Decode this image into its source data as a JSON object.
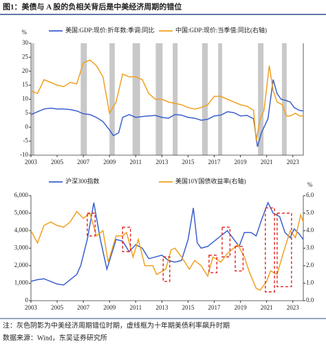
{
  "header": {
    "title": "图1：美债与 A 股的负相关背后是中美经济周期的错位"
  },
  "chart_data": [
    {
      "type": "line",
      "ylabel": "%",
      "xlim": [
        2003,
        2023.8
      ],
      "xticks": [
        2003,
        2005,
        2007,
        2009,
        2011,
        2013,
        2015,
        2017,
        2019,
        2021,
        2023
      ],
      "ylim": [
        -10,
        30
      ],
      "yticks": [
        -10,
        -5,
        0,
        5,
        10,
        15,
        20,
        25,
        30
      ],
      "y2lim": [
        -10,
        30
      ],
      "shaded_periods": [
        [
          2003.05,
          2003.26
        ],
        [
          2006.8,
          2007.27
        ],
        [
          2009.0,
          2009.4
        ],
        [
          2010.76,
          2011.33
        ],
        [
          2012.53,
          2013.05
        ],
        [
          2013.83,
          2014.2
        ],
        [
          2016.07,
          2016.5
        ],
        [
          2017.3,
          2017.6
        ],
        [
          2020.34,
          2020.76
        ],
        [
          2022.17,
          2022.53
        ]
      ],
      "series": [
        {
          "name": "美国:GDP:现价:折年数:季调:同比",
          "color": "#3a5fcd",
          "x": [
            2003,
            2003.5,
            2004,
            2004.5,
            2005,
            2005.5,
            2006,
            2006.5,
            2007,
            2007.5,
            2008,
            2008.5,
            2009,
            2009.3,
            2009.7,
            2010,
            2010.5,
            2011,
            2011.5,
            2012,
            2012.5,
            2013,
            2013.5,
            2014,
            2014.5,
            2015,
            2015.5,
            2016,
            2016.5,
            2017,
            2017.5,
            2018,
            2018.5,
            2019,
            2019.5,
            2020,
            2020.3,
            2020.6,
            2020.8,
            2021.1,
            2021.3,
            2021.5,
            2021.8,
            2022.1,
            2022.5,
            2022.8,
            2023.1,
            2023.5,
            2023.8
          ],
          "values": [
            4.5,
            5.5,
            6.5,
            6.8,
            6.5,
            6.5,
            6.3,
            5.8,
            4.8,
            4.5,
            3.5,
            2,
            -1,
            -3,
            -2,
            3.5,
            4.5,
            3.5,
            3.8,
            4,
            4.2,
            3.5,
            3.2,
            4.5,
            4.3,
            3.5,
            3.2,
            2.5,
            2.8,
            4,
            4.3,
            5.5,
            5.2,
            4,
            4.2,
            3,
            -7,
            -2,
            0,
            3,
            10,
            17,
            12,
            10,
            9.5,
            9,
            7,
            6,
            5.8
          ]
        },
        {
          "name": "中国:GDP:现价:当季值:同比(右轴)",
          "color": "#f0a020",
          "axis": "y2",
          "x": [
            2003,
            2003.5,
            2004,
            2004.5,
            2005,
            2005.5,
            2006,
            2006.5,
            2007,
            2007.5,
            2008,
            2008.5,
            2009,
            2009.5,
            2010,
            2010.5,
            2011,
            2011.5,
            2012,
            2012.5,
            2013,
            2013.5,
            2014,
            2014.5,
            2015,
            2015.5,
            2016,
            2016.5,
            2017,
            2017.5,
            2018,
            2018.5,
            2019,
            2019.5,
            2020,
            2020.2,
            2020.5,
            2020.8,
            2021.2,
            2021.5,
            2021.8,
            2022.2,
            2022.5,
            2022.8,
            2023.2,
            2023.5,
            2023.8
          ],
          "values": [
            13,
            12,
            17,
            16,
            15,
            14.5,
            16,
            15.5,
            23,
            24,
            22,
            18,
            5,
            9,
            19,
            18,
            18,
            17,
            12,
            10,
            10,
            9,
            8.5,
            8,
            7,
            6.5,
            7,
            8,
            11,
            11,
            10,
            9,
            8,
            7.5,
            6,
            -5,
            3,
            6,
            22,
            13,
            9,
            8,
            4,
            4,
            5,
            4,
            4
          ]
        }
      ]
    },
    {
      "type": "line",
      "y2label": "%",
      "xlim": [
        2003,
        2023.8
      ],
      "xticks": [
        2003,
        2005,
        2007,
        2009,
        2011,
        2013,
        2015,
        2017,
        2019,
        2021,
        2023
      ],
      "ylim": [
        0,
        6000
      ],
      "yticks": [
        {
          "value": 0,
          "label": "0"
        },
        {
          "value": 1000,
          "label": "1,000"
        },
        {
          "value": 2000,
          "label": "2,000"
        },
        {
          "value": 3000,
          "label": "3,000"
        },
        {
          "value": 4000,
          "label": "4,000"
        },
        {
          "value": 5000,
          "label": "5,000"
        },
        {
          "value": 6000,
          "label": "6,000"
        }
      ],
      "y2lim": [
        0,
        6
      ],
      "y2ticks": [
        {
          "value": 0,
          "label": "0.0"
        },
        {
          "value": 1,
          "label": "1.0"
        },
        {
          "value": 2,
          "label": "2.0"
        },
        {
          "value": 3,
          "label": "3.0"
        },
        {
          "value": 4,
          "label": "4.0"
        },
        {
          "value": 5,
          "label": "5.0"
        },
        {
          "value": 6,
          "label": "6.0"
        }
      ],
      "highlight_boxes": [
        [
          2007.3,
          2007.9,
          3700,
          5000
        ],
        [
          2010.0,
          2010.6,
          2800,
          4200
        ],
        [
          2013.1,
          2013.6,
          1100,
          2500
        ],
        [
          2016.6,
          2017.2,
          1600,
          2600
        ],
        [
          2017.6,
          2018.2,
          2500,
          4200
        ],
        [
          2018.6,
          2019.2,
          1700,
          3100
        ],
        [
          2020.9,
          2021.6,
          500,
          5300
        ],
        [
          2021.8,
          2022.9,
          800,
          5000
        ]
      ],
      "series": [
        {
          "name": "沪深300指数",
          "color": "#3a5fcd",
          "x": [
            2003,
            2003.5,
            2004,
            2004.5,
            2005,
            2005.5,
            2006,
            2006.5,
            2006.8,
            2007.3,
            2007.8,
            2008.3,
            2008.8,
            2009.5,
            2010,
            2010.5,
            2011,
            2011.5,
            2012,
            2012.5,
            2013,
            2013.5,
            2014,
            2014.5,
            2015,
            2015.4,
            2015.7,
            2016,
            2016.5,
            2017,
            2017.5,
            2018,
            2018.5,
            2018.9,
            2019.3,
            2019.8,
            2020.2,
            2020.6,
            2021.1,
            2021.5,
            2022,
            2022.4,
            2022.8,
            2023.1,
            2023.5,
            2023.8
          ],
          "values": [
            1100,
            1200,
            1250,
            1100,
            950,
            900,
            1200,
            1500,
            2000,
            3500,
            5600,
            3500,
            1800,
            3500,
            3400,
            2800,
            3200,
            3000,
            2400,
            2500,
            2600,
            2300,
            2200,
            2300,
            3500,
            5300,
            3300,
            3000,
            3100,
            3400,
            3700,
            4000,
            3500,
            3100,
            3900,
            3900,
            3700,
            4600,
            5600,
            5000,
            4800,
            3900,
            3600,
            4100,
            3800,
            3500
          ]
        },
        {
          "name": "美国10Y国债收益率(右轴)",
          "color": "#f0a020",
          "axis": "y2",
          "x": [
            2003,
            2003.5,
            2004,
            2004.5,
            2005,
            2005.5,
            2006,
            2006.5,
            2007,
            2007.5,
            2008,
            2008.5,
            2008.9,
            2009.5,
            2010,
            2010.3,
            2010.8,
            2011.2,
            2011.7,
            2012.3,
            2012.6,
            2013.3,
            2013.7,
            2014,
            2014.5,
            2015.1,
            2015.5,
            2016,
            2016.5,
            2016.9,
            2017.5,
            2018,
            2018.8,
            2019.3,
            2019.7,
            2020.2,
            2020.5,
            2021,
            2021.3,
            2021.8,
            2022.3,
            2022.8,
            2023.2,
            2023.6,
            2023.8
          ],
          "values": [
            4.0,
            3.3,
            4.3,
            4.5,
            4.3,
            4.2,
            4.5,
            5.1,
            4.7,
            5.0,
            3.7,
            4.0,
            2.2,
            3.7,
            3.7,
            3.9,
            2.5,
            3.5,
            2.0,
            2.0,
            1.5,
            1.8,
            2.9,
            3.0,
            2.5,
            1.8,
            2.3,
            2.0,
            1.4,
            2.5,
            2.2,
            2.7,
            3.2,
            2.5,
            1.6,
            0.7,
            0.6,
            1.1,
            1.7,
            1.5,
            2.8,
            4.0,
            3.6,
            4.9,
            4.5
          ]
        }
      ]
    }
  ],
  "notes": [
    "注：灰色阴影为中美经济周期错位时期，虚线框为十年期美债利率飙升时期",
    "数据来源：Wind，东吴证券研究所"
  ]
}
